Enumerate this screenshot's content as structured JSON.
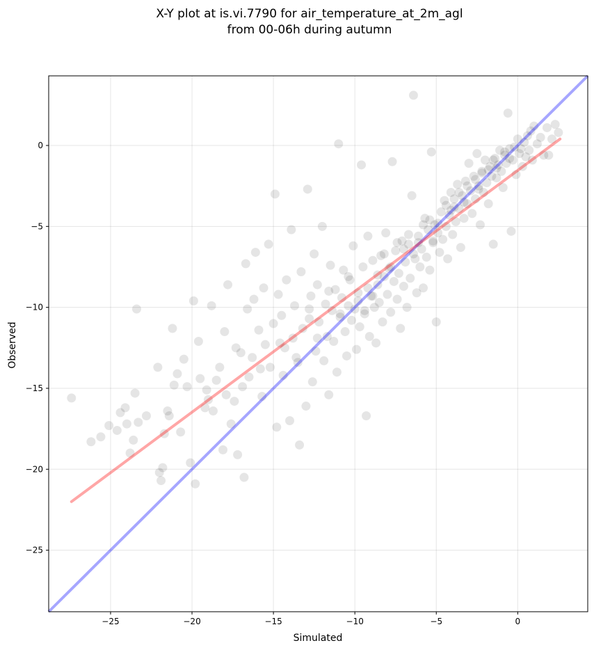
{
  "chart_data": {
    "type": "scatter",
    "title_lines": [
      "X-Y plot at is.vi.7790 for air_temperature_at_2m_agl",
      "from 00-06h during autumn"
    ],
    "xlabel": "Simulated",
    "ylabel": "Observed",
    "xlim": [
      -28.8,
      4.3
    ],
    "ylim": [
      -28.8,
      4.3
    ],
    "xticks": [
      -25,
      -20,
      -15,
      -10,
      -5,
      0
    ],
    "yticks": [
      -25,
      -20,
      -15,
      -10,
      -5,
      0
    ],
    "xtick_labels": [
      "−25",
      "−20",
      "−15",
      "−10",
      "−5",
      "0"
    ],
    "ytick_labels": [
      "−25",
      "−20",
      "−15",
      "−10",
      "−5",
      "0"
    ],
    "grid": true,
    "points_color": "#000000",
    "identity_line": {
      "x": [
        -28.8,
        4.3
      ],
      "y": [
        -28.8,
        4.3
      ],
      "color": "#0000ff"
    },
    "fit_line": {
      "x": [
        -27.4,
        2.6
      ],
      "y": [
        -22.0,
        0.4
      ],
      "color": "#ff0000"
    },
    "points": [
      [
        -27.4,
        -15.6
      ],
      [
        -26.2,
        -18.3
      ],
      [
        -25.6,
        -18.0
      ],
      [
        -25.1,
        -17.3
      ],
      [
        -24.6,
        -17.6
      ],
      [
        -24.4,
        -16.5
      ],
      [
        -24.1,
        -16.2
      ],
      [
        -24.0,
        -17.2
      ],
      [
        -23.8,
        -19.0
      ],
      [
        -23.6,
        -18.2
      ],
      [
        -23.5,
        -15.3
      ],
      [
        -23.4,
        -10.1
      ],
      [
        -23.3,
        -17.1
      ],
      [
        -22.8,
        -16.7
      ],
      [
        -22.1,
        -13.7
      ],
      [
        -22.0,
        -20.2
      ],
      [
        -21.9,
        -20.7
      ],
      [
        -21.8,
        -19.9
      ],
      [
        -21.7,
        -17.8
      ],
      [
        -21.5,
        -16.4
      ],
      [
        -21.4,
        -16.7
      ],
      [
        -21.2,
        -11.3
      ],
      [
        -21.1,
        -14.8
      ],
      [
        -20.9,
        -14.1
      ],
      [
        -20.7,
        -17.7
      ],
      [
        -20.5,
        -13.2
      ],
      [
        -20.3,
        -14.9
      ],
      [
        -20.1,
        -19.6
      ],
      [
        -19.9,
        -9.6
      ],
      [
        -19.8,
        -20.9
      ],
      [
        -19.6,
        -12.1
      ],
      [
        -19.5,
        -14.4
      ],
      [
        -19.2,
        -16.2
      ],
      [
        -19.0,
        -15.7
      ],
      [
        -18.8,
        -9.9
      ],
      [
        -18.7,
        -16.4
      ],
      [
        -18.5,
        -14.5
      ],
      [
        -18.3,
        -13.7
      ],
      [
        -18.1,
        -18.8
      ],
      [
        -18.0,
        -11.5
      ],
      [
        -17.8,
        -8.6
      ],
      [
        -17.6,
        -17.2
      ],
      [
        -17.4,
        -15.8
      ],
      [
        -17.3,
        -12.5
      ],
      [
        -17.2,
        -19.1
      ],
      [
        -17.0,
        -12.8
      ],
      [
        -16.8,
        -20.5
      ],
      [
        -16.7,
        -7.3
      ],
      [
        -16.6,
        -10.1
      ],
      [
        -16.5,
        -14.3
      ],
      [
        -16.3,
        -13.1
      ],
      [
        -16.2,
        -9.5
      ],
      [
        -16.1,
        -6.6
      ],
      [
        -15.9,
        -11.4
      ],
      [
        -15.7,
        -15.5
      ],
      [
        -15.6,
        -8.8
      ],
      [
        -15.5,
        -12.3
      ],
      [
        -15.3,
        -6.1
      ],
      [
        -15.2,
        -13.7
      ],
      [
        -15.0,
        -11.0
      ],
      [
        -14.9,
        -3.0
      ],
      [
        -14.8,
        -17.4
      ],
      [
        -14.7,
        -9.2
      ],
      [
        -14.5,
        -10.5
      ],
      [
        -14.4,
        -14.2
      ],
      [
        -14.3,
        -12.5
      ],
      [
        -14.2,
        -8.3
      ],
      [
        -14.0,
        -17.0
      ],
      [
        -13.9,
        -5.2
      ],
      [
        -13.8,
        -11.9
      ],
      [
        -13.7,
        -9.9
      ],
      [
        -13.5,
        -13.4
      ],
      [
        -13.4,
        -18.5
      ],
      [
        -13.3,
        -7.8
      ],
      [
        -13.2,
        -11.3
      ],
      [
        -13.0,
        -16.1
      ],
      [
        -12.9,
        -2.7
      ],
      [
        -12.8,
        -10.7
      ],
      [
        -12.7,
        -9.3
      ],
      [
        -12.6,
        -14.6
      ],
      [
        -12.5,
        -6.7
      ],
      [
        -12.4,
        -12.7
      ],
      [
        -12.3,
        -8.6
      ],
      [
        -12.2,
        -10.9
      ],
      [
        -12.0,
        -5.0
      ],
      [
        -11.9,
        -13.3
      ],
      [
        -11.8,
        -9.8
      ],
      [
        -11.7,
        -11.8
      ],
      [
        -11.6,
        -15.4
      ],
      [
        -11.5,
        -7.4
      ],
      [
        -11.4,
        -10.2
      ],
      [
        -11.3,
        -12.1
      ],
      [
        -11.2,
        -8.9
      ],
      [
        -11.1,
        -14.0
      ],
      [
        -11.0,
        0.1
      ],
      [
        -10.9,
        -10.6
      ],
      [
        -10.8,
        -9.4
      ],
      [
        -10.7,
        -7.7
      ],
      [
        -10.6,
        -11.5
      ],
      [
        -10.5,
        -13.0
      ],
      [
        -10.4,
        -9.9
      ],
      [
        -10.3,
        -8.3
      ],
      [
        -10.2,
        -10.8
      ],
      [
        -10.1,
        -6.2
      ],
      [
        -10.0,
        -10.1
      ],
      [
        -9.9,
        -12.6
      ],
      [
        -9.8,
        -9.6
      ],
      [
        -9.7,
        -11.2
      ],
      [
        -9.6,
        -1.2
      ],
      [
        -9.5,
        -7.5
      ],
      [
        -9.4,
        -10.4
      ],
      [
        -9.3,
        -16.7
      ],
      [
        -9.2,
        -8.8
      ],
      [
        -9.1,
        -11.8
      ],
      [
        -9.0,
        -9.3
      ],
      [
        -8.9,
        -7.1
      ],
      [
        -8.8,
        -10.0
      ],
      [
        -8.7,
        -12.2
      ],
      [
        -8.6,
        -8.6
      ],
      [
        -8.5,
        -9.7
      ],
      [
        -8.4,
        -6.8
      ],
      [
        -8.3,
        -10.9
      ],
      [
        -8.2,
        -8.1
      ],
      [
        -8.1,
        -5.4
      ],
      [
        -8.0,
        -9.2
      ],
      [
        -7.9,
        -7.6
      ],
      [
        -7.8,
        -10.3
      ],
      [
        -7.7,
        -1.0
      ],
      [
        -7.6,
        -8.4
      ],
      [
        -7.5,
        -6.5
      ],
      [
        -7.4,
        -9.5
      ],
      [
        -7.3,
        -7.9
      ],
      [
        -7.2,
        -11.3
      ],
      [
        -7.1,
        -5.9
      ],
      [
        -7.0,
        -8.7
      ],
      [
        -6.9,
        -7.2
      ],
      [
        -6.8,
        -10.0
      ],
      [
        -6.7,
        -6.1
      ],
      [
        -6.6,
        -8.2
      ],
      [
        -6.5,
        -3.1
      ],
      [
        -6.4,
        3.1
      ],
      [
        -6.3,
        -7.0
      ],
      [
        -6.2,
        -9.1
      ],
      [
        -6.1,
        -5.6
      ],
      [
        -6.0,
        -7.5
      ],
      [
        -5.9,
        -6.4
      ],
      [
        -5.8,
        -8.8
      ],
      [
        -5.7,
        -4.5
      ],
      [
        -5.6,
        -6.9
      ],
      [
        -5.5,
        -5.2
      ],
      [
        -5.4,
        -7.7
      ],
      [
        -5.3,
        -0.4
      ],
      [
        -5.2,
        -6.0
      ],
      [
        -5.1,
        -4.9
      ],
      [
        -5.0,
        -10.9
      ],
      [
        -4.9,
        -5.4
      ],
      [
        -4.8,
        -6.6
      ],
      [
        -4.7,
        -4.1
      ],
      [
        -4.6,
        -5.8
      ],
      [
        -4.5,
        -3.4
      ],
      [
        -4.4,
        -5.0
      ],
      [
        -4.3,
        -7.0
      ],
      [
        -4.2,
        -4.3
      ],
      [
        -4.1,
        -2.9
      ],
      [
        -4.0,
        -5.5
      ],
      [
        -3.9,
        -3.8
      ],
      [
        -3.8,
        -4.7
      ],
      [
        -3.7,
        -2.4
      ],
      [
        -3.6,
        -3.9
      ],
      [
        -3.5,
        -6.3
      ],
      [
        -3.4,
        -3.1
      ],
      [
        -3.3,
        -4.5
      ],
      [
        -3.2,
        -2.2
      ],
      [
        -3.1,
        -3.6
      ],
      [
        -3.0,
        -1.1
      ],
      [
        -2.9,
        -2.8
      ],
      [
        -2.8,
        -4.2
      ],
      [
        -2.7,
        -1.9
      ],
      [
        -2.6,
        -3.3
      ],
      [
        -2.5,
        -0.5
      ],
      [
        -2.4,
        -2.5
      ],
      [
        -2.3,
        -4.9
      ],
      [
        -2.2,
        -1.6
      ],
      [
        -2.1,
        -2.9
      ],
      [
        -2.0,
        -0.9
      ],
      [
        -1.9,
        -2.3
      ],
      [
        -1.8,
        -3.6
      ],
      [
        -1.7,
        -1.3
      ],
      [
        -1.6,
        -1.9
      ],
      [
        -1.5,
        -6.1
      ],
      [
        -1.4,
        -0.8
      ],
      [
        -1.3,
        -2.0
      ],
      [
        -1.2,
        -1.2
      ],
      [
        -1.1,
        -0.3
      ],
      [
        -1.0,
        -1.6
      ],
      [
        -0.9,
        -2.6
      ],
      [
        -0.8,
        -0.6
      ],
      [
        -0.7,
        -1.1
      ],
      [
        -0.6,
        2.0
      ],
      [
        -0.5,
        -0.2
      ],
      [
        -0.4,
        -5.3
      ],
      [
        -0.3,
        -0.9
      ],
      [
        -0.2,
        -0.1
      ],
      [
        -0.1,
        -1.8
      ],
      [
        0.0,
        0.4
      ],
      [
        0.1,
        -0.5
      ],
      [
        0.2,
        -0.2
      ],
      [
        0.3,
        -1.3
      ],
      [
        0.4,
        0.2
      ],
      [
        0.5,
        -0.7
      ],
      [
        0.6,
        0.6
      ],
      [
        0.7,
        -0.3
      ],
      [
        0.8,
        0.9
      ],
      [
        0.9,
        -0.9
      ],
      [
        1.0,
        1.2
      ],
      [
        1.2,
        0.1
      ],
      [
        1.4,
        0.5
      ],
      [
        1.6,
        -0.6
      ],
      [
        1.8,
        1.1
      ],
      [
        1.9,
        -0.6
      ],
      [
        2.1,
        0.4
      ],
      [
        2.3,
        1.3
      ],
      [
        2.5,
        0.8
      ],
      [
        -9.2,
        -5.6
      ],
      [
        -8.2,
        -6.7
      ],
      [
        -7.4,
        -6.0
      ],
      [
        -6.7,
        -5.5
      ],
      [
        -5.8,
        -4.9
      ],
      [
        -4.4,
        -3.7
      ],
      [
        -3.6,
        -2.9
      ],
      [
        -2.6,
        -2.1
      ],
      [
        -1.8,
        -1.5
      ],
      [
        -10.4,
        -8.1
      ],
      [
        -11.6,
        -9.0
      ],
      [
        -12.8,
        -10.1
      ],
      [
        -8.9,
        -9.3
      ],
      [
        -7.0,
        -6.4
      ],
      [
        -6.1,
        -6.0
      ],
      [
        -5.4,
        -4.6
      ],
      [
        -4.9,
        -4.8
      ],
      [
        -3.9,
        -3.3
      ],
      [
        -3.1,
        -2.5
      ],
      [
        -2.2,
        -1.7
      ],
      [
        -1.5,
        -0.9
      ],
      [
        -0.8,
        -0.4
      ],
      [
        -9.8,
        -9.1
      ],
      [
        -10.9,
        -10.4
      ],
      [
        -9.4,
        -10.2
      ],
      [
        -8.6,
        -8.0
      ],
      [
        -7.8,
        -7.5
      ],
      [
        -6.4,
        -6.7
      ],
      [
        -5.2,
        -5.9
      ],
      [
        -4.1,
        -4.0
      ],
      [
        -3.3,
        -3.5
      ],
      [
        -2.4,
        -2.7
      ],
      [
        -1.3,
        -1.4
      ],
      [
        -0.5,
        -0.8
      ],
      [
        -12.3,
        -11.9
      ],
      [
        -13.6,
        -13.1
      ],
      [
        -14.6,
        -12.2
      ],
      [
        -15.8,
        -13.8
      ],
      [
        -16.9,
        -14.9
      ],
      [
        -17.9,
        -15.4
      ],
      [
        -19.1,
        -15.1
      ]
    ]
  }
}
